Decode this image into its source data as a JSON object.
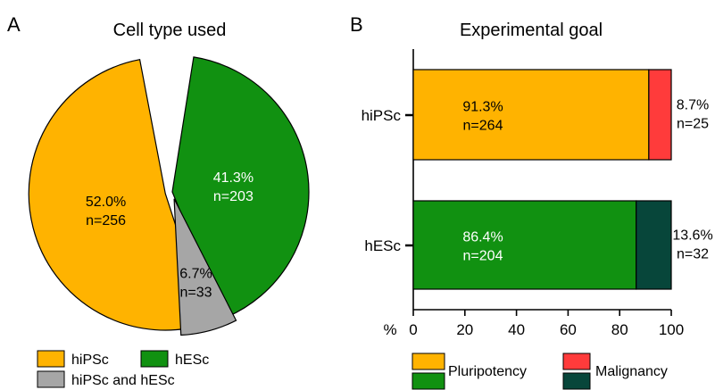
{
  "panels": {
    "a_letter": "A",
    "b_letter": "B"
  },
  "chart_data": [
    {
      "type": "pie",
      "title": "Cell type used",
      "slices": [
        {
          "label": "hiPSc",
          "percent": 52.0,
          "percent_text": "52.0%",
          "n_text": "n=256",
          "color": "#FFB300",
          "text_color": "#000000"
        },
        {
          "label": "hESc",
          "percent": 41.3,
          "percent_text": "41.3%",
          "n_text": "n=203",
          "color": "#119111",
          "text_color": "#FFFFFF"
        },
        {
          "label": "hiPSc and hESc",
          "percent": 6.7,
          "percent_text": "6.7%",
          "n_text": "n=33",
          "color": "#A6A6A6",
          "text_color": "#000000"
        }
      ],
      "legend": [
        "hiPSc",
        "hESc",
        "hiPSc and hESc"
      ],
      "legend_position": "bottom"
    },
    {
      "type": "bar",
      "orientation": "horizontal",
      "stacked": true,
      "title": "Experimental goal",
      "categories": [
        "hiPSc",
        "hESc"
      ],
      "series": [
        {
          "name": "Pluripotency",
          "values": [
            91.3,
            86.4
          ],
          "colors": [
            "#FFB300",
            "#119111"
          ],
          "value_labels": [
            "91.3%",
            "86.4%"
          ],
          "n_labels": [
            "n=264",
            "n=204"
          ],
          "text_colors": [
            "#000000",
            "#FFFFFF"
          ]
        },
        {
          "name": "Malignancy",
          "values": [
            8.7,
            13.6
          ],
          "colors": [
            "#FF3B3B",
            "#07463A"
          ],
          "value_labels": [
            "8.7%",
            "13.6%"
          ],
          "n_labels": [
            "n=25",
            "n=32"
          ]
        }
      ],
      "xlabel": "%",
      "xlim": [
        0,
        100
      ],
      "xticks": [
        "0",
        "20",
        "40",
        "60",
        "80",
        "100"
      ],
      "legend_position": "bottom"
    }
  ]
}
